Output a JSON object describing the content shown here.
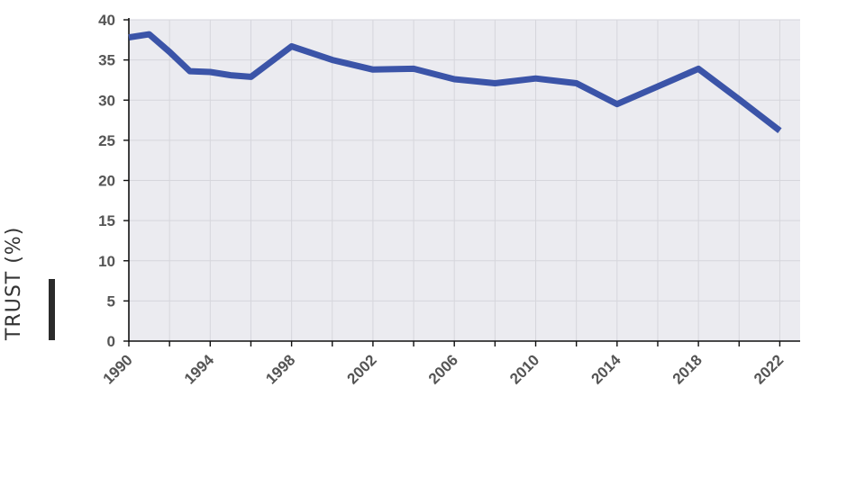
{
  "chart_data": {
    "type": "line",
    "ylabel": "TRUST (%)",
    "xlabel": "",
    "title": "",
    "x": [
      1990,
      1991,
      1992,
      1993,
      1994,
      1995,
      1996,
      1998,
      2000,
      2002,
      2004,
      2006,
      2008,
      2010,
      2012,
      2014,
      2016,
      2018,
      2020,
      2022
    ],
    "series": [
      {
        "values": [
          37.8,
          38.2,
          36.0,
          33.6,
          33.5,
          33.1,
          32.9,
          36.7,
          35.0,
          33.8,
          33.9,
          32.6,
          32.1,
          32.7,
          32.1,
          29.5,
          31.7,
          33.9,
          30.1,
          26.2
        ]
      }
    ],
    "xlim": [
      1990,
      2023
    ],
    "ylim": [
      0,
      40
    ],
    "yticks": [
      0,
      5,
      10,
      15,
      20,
      25,
      30,
      35,
      40
    ],
    "xticks": [
      1990,
      1994,
      1998,
      2002,
      2006,
      2010,
      2014,
      2018,
      2022
    ],
    "xminor": [
      1992,
      1996,
      2000,
      2004,
      2008,
      2012,
      2016,
      2020
    ],
    "grid": true,
    "colors": {
      "line": "#3b54a8",
      "plot_bg": "#ebebf0",
      "grid": "#d6d6dc",
      "axis": "#111111",
      "label_bar": "#2b2b2b"
    }
  }
}
